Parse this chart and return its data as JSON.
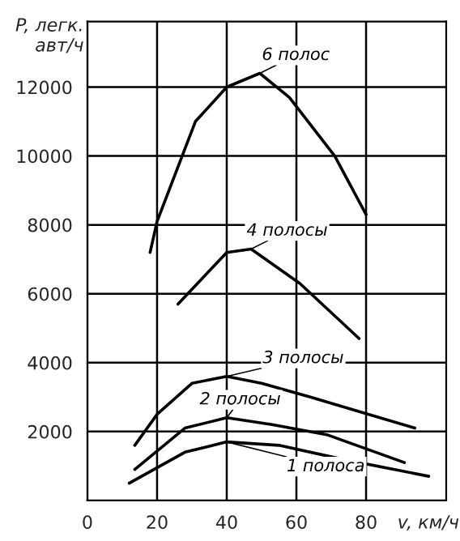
{
  "chart_data": {
    "type": "line",
    "xlabel": "v, км/ч",
    "ylabel": "P, легк.\nавт/ч",
    "xlim": [
      0,
      103
    ],
    "xticks": [
      0,
      20,
      40,
      60,
      80
    ],
    "ylim": [
      0,
      13900
    ],
    "yticks": [
      2000,
      4000,
      6000,
      8000,
      10000,
      12000
    ],
    "grid": true,
    "marker": "none",
    "line_style": "solid",
    "series": [
      {
        "name": "6 полос",
        "color": "#000000",
        "x": [
          18,
          20,
          31,
          40,
          49.5,
          58,
          71,
          80
        ],
        "values": [
          7200,
          8100,
          11000,
          12000,
          12400,
          11700,
          10000,
          8300
        ]
      },
      {
        "name": "4 полосы",
        "color": "#000000",
        "x": [
          26,
          40,
          47,
          61,
          78
        ],
        "values": [
          5700,
          7200,
          7300,
          6300,
          4700
        ]
      },
      {
        "name": "3 полосы",
        "color": "#000000",
        "x": [
          13.6,
          20,
          30,
          40,
          50,
          64,
          94
        ],
        "values": [
          1600,
          2500,
          3400,
          3600,
          3400,
          3000,
          2100
        ]
      },
      {
        "name": "2 полосы",
        "color": "#000000",
        "x": [
          13.6,
          28,
          40,
          53,
          69,
          91
        ],
        "values": [
          900,
          2100,
          2400,
          2200,
          1900,
          1100
        ]
      },
      {
        "name": "1 полоса",
        "color": "#000000",
        "x": [
          12,
          28,
          40,
          55,
          73,
          98
        ],
        "values": [
          500,
          1400,
          1700,
          1600,
          1200,
          700
        ]
      }
    ]
  }
}
